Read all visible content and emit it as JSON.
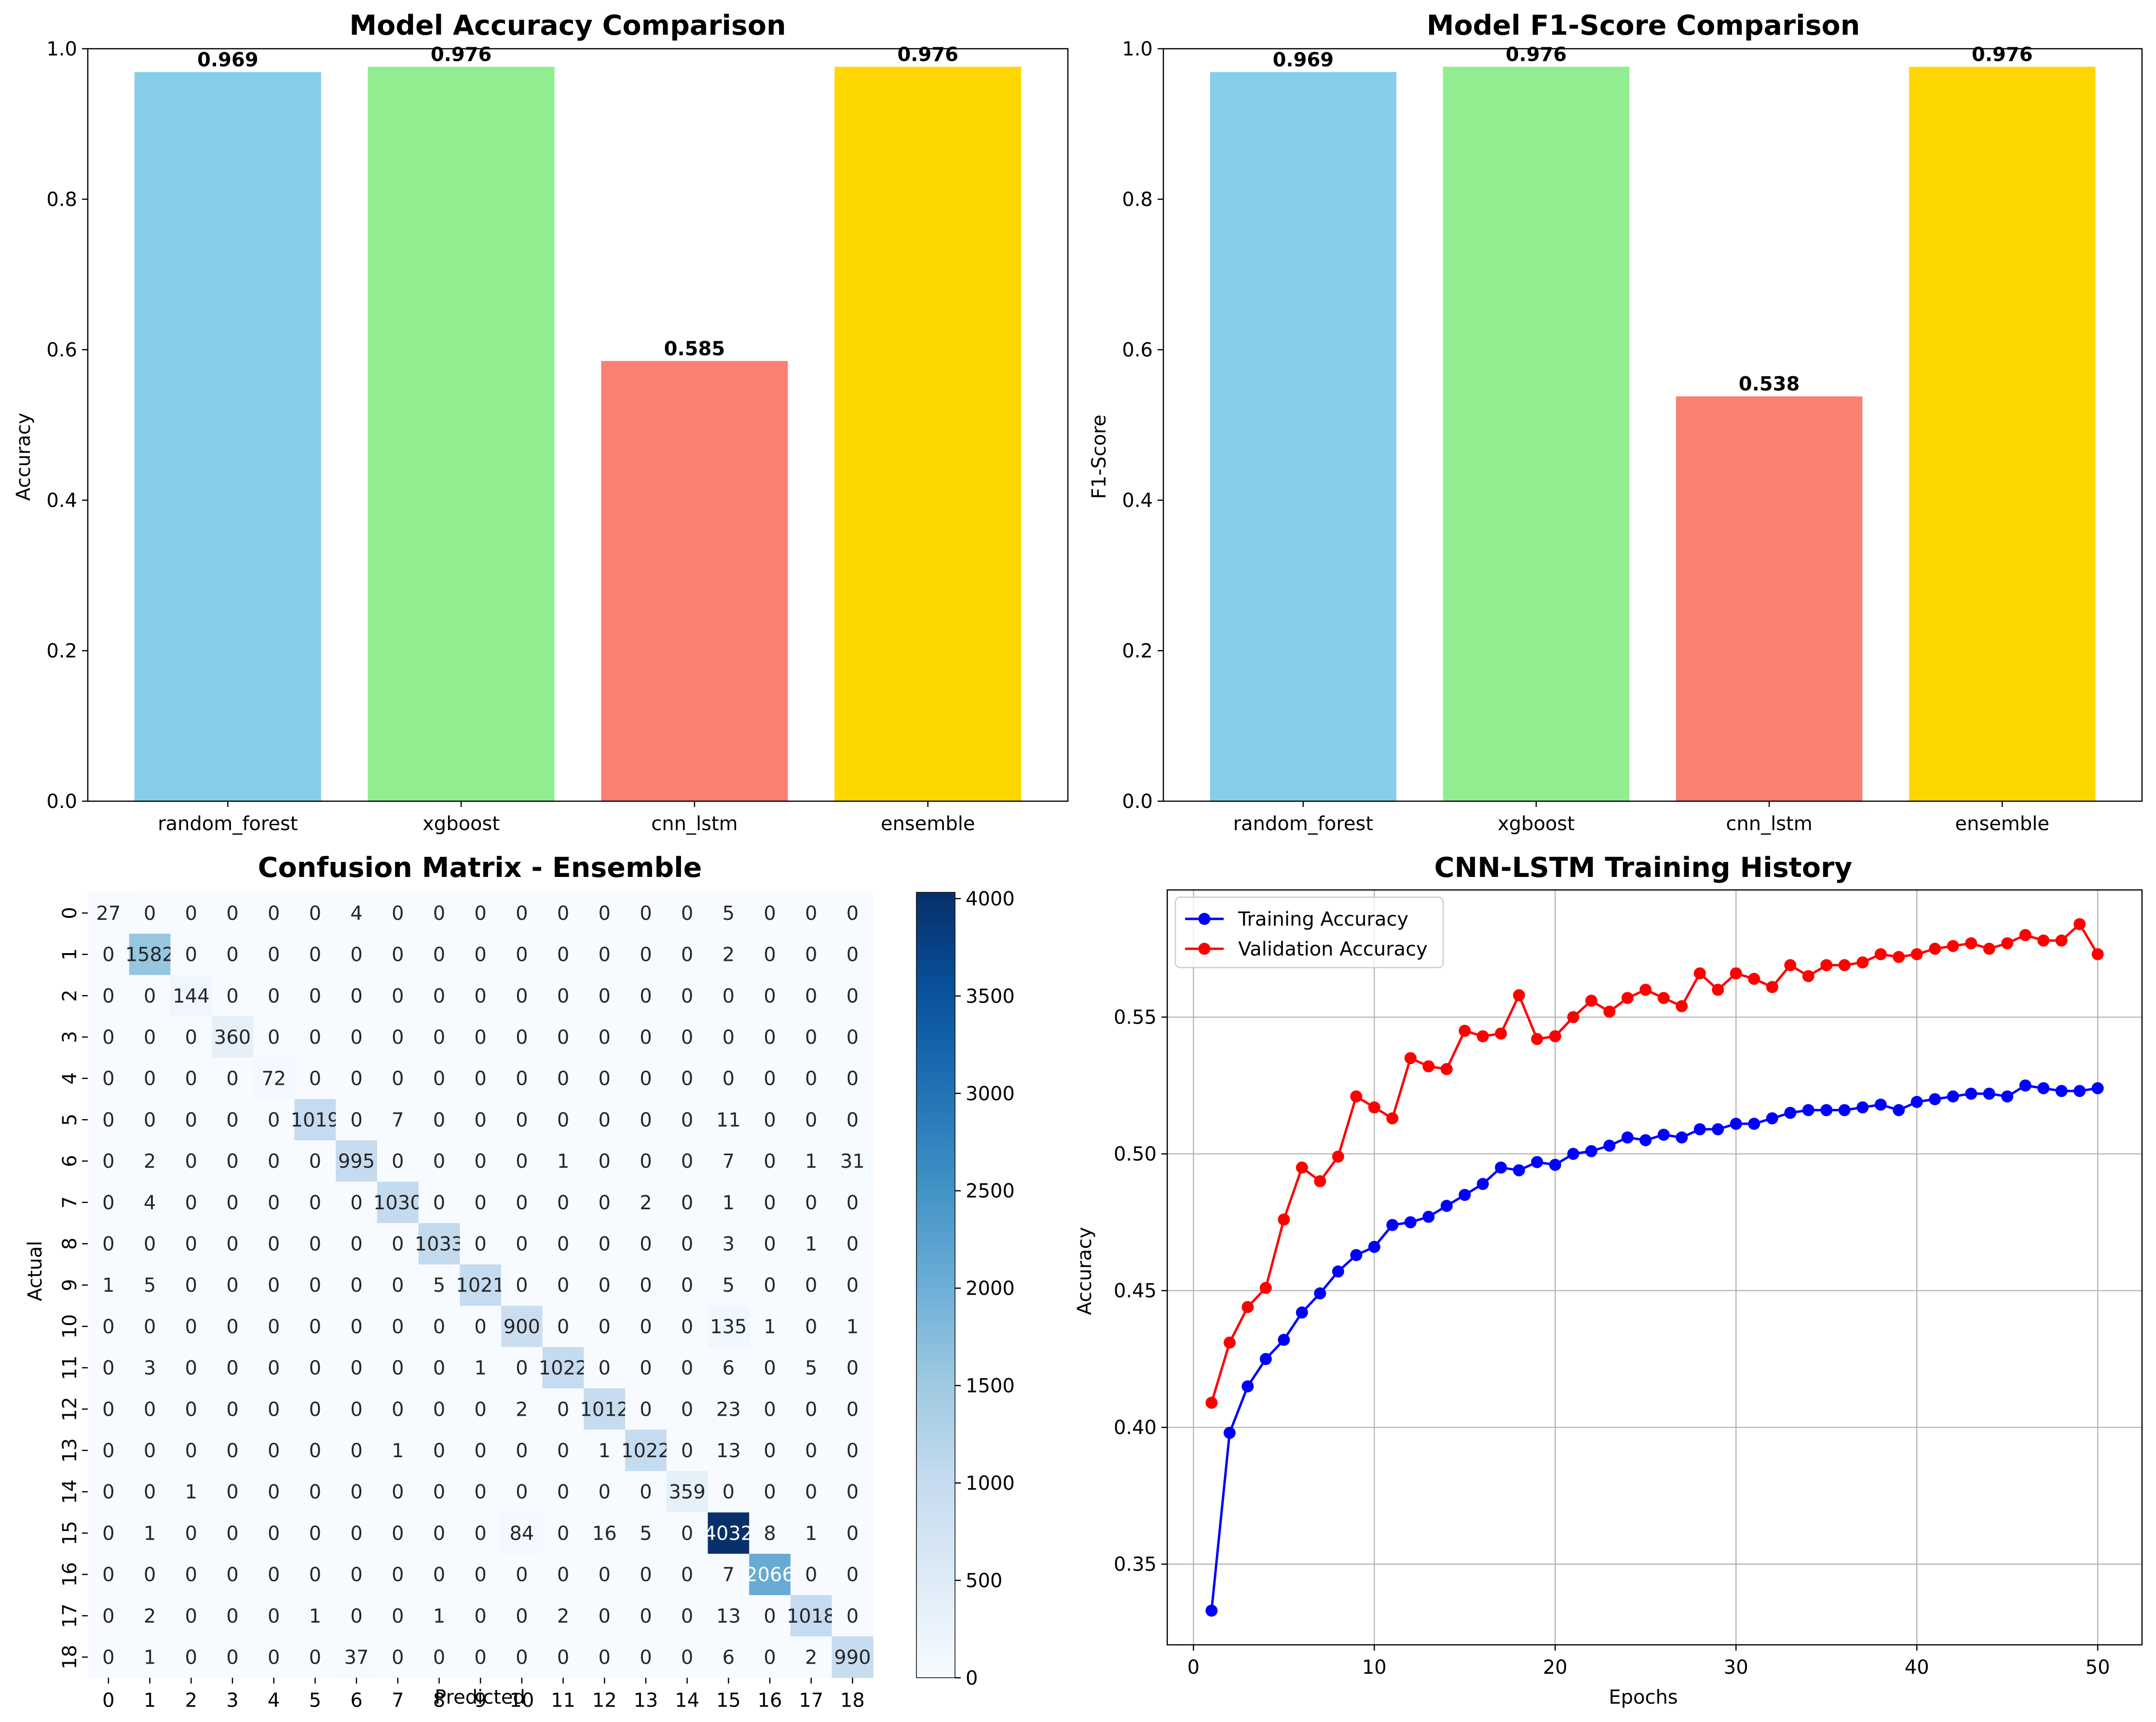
{
  "chart_data": [
    {
      "type": "bar",
      "title": "Model Accuracy Comparison",
      "ylabel": "Accuracy",
      "categories": [
        "random_forest",
        "xgboost",
        "cnn_lstm",
        "ensemble"
      ],
      "values": [
        0.969,
        0.976,
        0.585,
        0.976
      ],
      "value_labels": [
        "0.969",
        "0.976",
        "0.585",
        "0.976"
      ],
      "colors": [
        "#87CEEB",
        "#90EE90",
        "#FA8072",
        "#FFD700"
      ],
      "ylim": [
        0,
        1.0
      ],
      "yticks": [
        "0.0",
        "0.2",
        "0.4",
        "0.6",
        "0.8",
        "1.0"
      ]
    },
    {
      "type": "bar",
      "title": "Model F1-Score Comparison",
      "ylabel": "F1-Score",
      "categories": [
        "random_forest",
        "xgboost",
        "cnn_lstm",
        "ensemble"
      ],
      "values": [
        0.969,
        0.976,
        0.538,
        0.976
      ],
      "value_labels": [
        "0.969",
        "0.976",
        "0.538",
        "0.976"
      ],
      "colors": [
        "#87CEEB",
        "#90EE90",
        "#FA8072",
        "#FFD700"
      ],
      "ylim": [
        0,
        1.0
      ],
      "yticks": [
        "0.0",
        "0.2",
        "0.4",
        "0.6",
        "0.8",
        "1.0"
      ]
    },
    {
      "type": "heatmap",
      "title": "Confusion Matrix - Ensemble",
      "xlabel": "Predicted",
      "ylabel": "Actual",
      "labels": [
        "0",
        "1",
        "2",
        "3",
        "4",
        "5",
        "6",
        "7",
        "8",
        "9",
        "10",
        "11",
        "12",
        "13",
        "14",
        "15",
        "16",
        "17",
        "18"
      ],
      "colormap": "Blues",
      "vmin": 0,
      "vmax": 4032,
      "colorbar_ticks": [
        "0",
        "500",
        "1000",
        "1500",
        "2000",
        "2500",
        "3000",
        "3500",
        "4000"
      ],
      "matrix": [
        [
          27,
          0,
          0,
          0,
          0,
          0,
          4,
          0,
          0,
          0,
          0,
          0,
          0,
          0,
          0,
          5,
          0,
          0,
          0
        ],
        [
          0,
          1582,
          0,
          0,
          0,
          0,
          0,
          0,
          0,
          0,
          0,
          0,
          0,
          0,
          0,
          2,
          0,
          0,
          0
        ],
        [
          0,
          0,
          144,
          0,
          0,
          0,
          0,
          0,
          0,
          0,
          0,
          0,
          0,
          0,
          0,
          0,
          0,
          0,
          0
        ],
        [
          0,
          0,
          0,
          360,
          0,
          0,
          0,
          0,
          0,
          0,
          0,
          0,
          0,
          0,
          0,
          0,
          0,
          0,
          0
        ],
        [
          0,
          0,
          0,
          0,
          72,
          0,
          0,
          0,
          0,
          0,
          0,
          0,
          0,
          0,
          0,
          0,
          0,
          0,
          0
        ],
        [
          0,
          0,
          0,
          0,
          0,
          1019,
          0,
          7,
          0,
          0,
          0,
          0,
          0,
          0,
          0,
          11,
          0,
          0,
          0
        ],
        [
          0,
          2,
          0,
          0,
          0,
          0,
          995,
          0,
          0,
          0,
          0,
          1,
          0,
          0,
          0,
          7,
          0,
          1,
          31
        ],
        [
          0,
          4,
          0,
          0,
          0,
          0,
          0,
          1030,
          0,
          0,
          0,
          0,
          0,
          2,
          0,
          1,
          0,
          0,
          0
        ],
        [
          0,
          0,
          0,
          0,
          0,
          0,
          0,
          0,
          1033,
          0,
          0,
          0,
          0,
          0,
          0,
          3,
          0,
          1,
          0
        ],
        [
          1,
          5,
          0,
          0,
          0,
          0,
          0,
          0,
          5,
          1021,
          0,
          0,
          0,
          0,
          0,
          5,
          0,
          0,
          0
        ],
        [
          0,
          0,
          0,
          0,
          0,
          0,
          0,
          0,
          0,
          0,
          900,
          0,
          0,
          0,
          0,
          135,
          1,
          0,
          1
        ],
        [
          0,
          3,
          0,
          0,
          0,
          0,
          0,
          0,
          0,
          1,
          0,
          1022,
          0,
          0,
          0,
          6,
          0,
          5,
          0
        ],
        [
          0,
          0,
          0,
          0,
          0,
          0,
          0,
          0,
          0,
          0,
          2,
          0,
          1012,
          0,
          0,
          23,
          0,
          0,
          0
        ],
        [
          0,
          0,
          0,
          0,
          0,
          0,
          0,
          1,
          0,
          0,
          0,
          0,
          1,
          1022,
          0,
          13,
          0,
          0,
          0
        ],
        [
          0,
          0,
          1,
          0,
          0,
          0,
          0,
          0,
          0,
          0,
          0,
          0,
          0,
          0,
          359,
          0,
          0,
          0,
          0
        ],
        [
          0,
          1,
          0,
          0,
          0,
          0,
          0,
          0,
          0,
          0,
          84,
          0,
          16,
          5,
          0,
          4032,
          8,
          1,
          0
        ],
        [
          0,
          0,
          0,
          0,
          0,
          0,
          0,
          0,
          0,
          0,
          0,
          0,
          0,
          0,
          0,
          7,
          2066,
          0,
          0
        ],
        [
          0,
          2,
          0,
          0,
          0,
          1,
          0,
          0,
          1,
          0,
          0,
          2,
          0,
          0,
          0,
          13,
          0,
          1018,
          0
        ],
        [
          0,
          1,
          0,
          0,
          0,
          0,
          37,
          0,
          0,
          0,
          0,
          0,
          0,
          0,
          0,
          6,
          0,
          2,
          990
        ]
      ]
    },
    {
      "type": "line",
      "title": "CNN-LSTM Training History",
      "xlabel": "Epochs",
      "ylabel": "Accuracy",
      "grid": true,
      "legend": "top-left",
      "xlim": [
        0,
        50
      ],
      "ylim": [
        0.3,
        0.6
      ],
      "xticks": [
        "0",
        "10",
        "20",
        "30",
        "40",
        "50"
      ],
      "yticks": [
        "0.35",
        "0.40",
        "0.45",
        "0.50",
        "0.55"
      ],
      "x": [
        1,
        2,
        3,
        4,
        5,
        6,
        7,
        8,
        9,
        10,
        11,
        12,
        13,
        14,
        15,
        16,
        17,
        18,
        19,
        20,
        21,
        22,
        23,
        24,
        25,
        26,
        27,
        28,
        29,
        30,
        31,
        32,
        33,
        34,
        35,
        36,
        37,
        38,
        39,
        40,
        41,
        42,
        43,
        44,
        45,
        46,
        47,
        48,
        49,
        50
      ],
      "series": [
        {
          "name": "Training Accuracy",
          "color": "#0000FF",
          "values": [
            0.333,
            0.398,
            0.415,
            0.425,
            0.432,
            0.442,
            0.449,
            0.457,
            0.463,
            0.466,
            0.474,
            0.475,
            0.477,
            0.481,
            0.485,
            0.489,
            0.495,
            0.494,
            0.497,
            0.496,
            0.5,
            0.501,
            0.503,
            0.506,
            0.505,
            0.507,
            0.506,
            0.509,
            0.509,
            0.511,
            0.511,
            0.513,
            0.515,
            0.516,
            0.516,
            0.516,
            0.517,
            0.518,
            0.516,
            0.519,
            0.52,
            0.521,
            0.522,
            0.522,
            0.521,
            0.525,
            0.524,
            0.523,
            0.523,
            0.524
          ]
        },
        {
          "name": "Validation Accuracy",
          "color": "#FF0000",
          "values": [
            0.409,
            0.431,
            0.444,
            0.451,
            0.476,
            0.495,
            0.49,
            0.499,
            0.521,
            0.517,
            0.513,
            0.535,
            0.532,
            0.531,
            0.545,
            0.543,
            0.544,
            0.558,
            0.542,
            0.543,
            0.55,
            0.556,
            0.552,
            0.557,
            0.56,
            0.557,
            0.554,
            0.566,
            0.56,
            0.566,
            0.564,
            0.561,
            0.569,
            0.565,
            0.569,
            0.569,
            0.57,
            0.573,
            0.572,
            0.573,
            0.575,
            0.576,
            0.577,
            0.575,
            0.577,
            0.58,
            0.578,
            0.578,
            0.584,
            0.573
          ]
        }
      ]
    }
  ]
}
